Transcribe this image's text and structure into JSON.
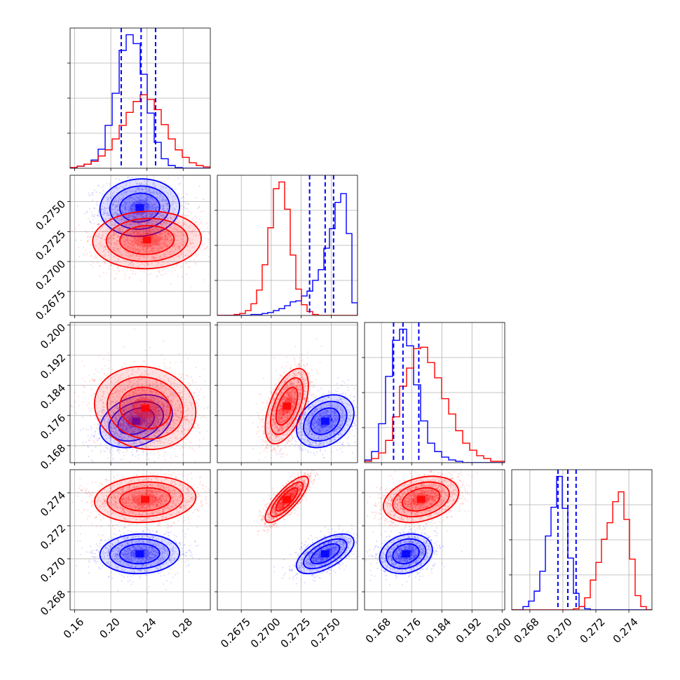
{
  "chart_data": {
    "type": "corner",
    "grid": true,
    "series": [
      {
        "color": "#0000ff"
      },
      {
        "color": "#ff0000"
      }
    ],
    "params": [
      {
        "range": [
          0.155,
          0.31
        ],
        "ticks": [
          0.16,
          0.2,
          0.24,
          0.28
        ],
        "tick_labels": [
          "0.16",
          "0.20",
          "0.24",
          "0.28"
        ]
      },
      {
        "range": [
          0.2655,
          0.2772
        ],
        "ticks": [
          0.2675,
          0.27,
          0.2725,
          0.275
        ],
        "tick_labels": [
          "0.2675",
          "0.2700",
          "0.2725",
          "0.2750"
        ]
      },
      {
        "range": [
          0.1635,
          0.2007
        ],
        "ticks": [
          0.168,
          0.176,
          0.184,
          0.192,
          0.2
        ],
        "tick_labels": [
          "0.168",
          "0.176",
          "0.184",
          "0.192",
          "0.200"
        ]
      },
      {
        "range": [
          0.2669,
          0.2754
        ],
        "ticks": [
          0.268,
          0.27,
          0.272,
          0.274
        ],
        "tick_labels": [
          "0.268",
          "0.270",
          "0.272",
          "0.274"
        ]
      }
    ],
    "histograms": [
      {
        "bins": [
          0.155,
          0.31,
          20
        ],
        "series": [
          [
            1,
            3,
            6,
            12,
            28,
            63,
            110,
            173,
            196,
            183,
            138,
            81,
            38,
            14,
            4,
            1,
            0,
            0,
            0,
            0
          ],
          [
            1,
            3,
            6,
            10,
            18,
            27,
            43,
            63,
            82,
            98,
            108,
            101,
            86,
            64,
            43,
            27,
            16,
            8,
            4,
            2
          ]
        ],
        "quantile_lines": [
          0.2115,
          0.2335,
          0.2495
        ]
      },
      {
        "bins": [
          0.2655,
          0.2772,
          25
        ],
        "series": [
          [
            0,
            0,
            0,
            0,
            0,
            0,
            1,
            1,
            2,
            3,
            5,
            7,
            10,
            14,
            15,
            20,
            25,
            36,
            47,
            69,
            89,
            116,
            125,
            84,
            13
          ],
          [
            0,
            0,
            0,
            1,
            2,
            5,
            12,
            26,
            52,
            90,
            130,
            137,
            109,
            62,
            27,
            11,
            4,
            1,
            0,
            0,
            0,
            0,
            0,
            0,
            0
          ]
        ],
        "quantile_lines": [
          0.2732,
          0.2745,
          0.2752
        ]
      },
      {
        "bins": [
          0.1635,
          0.2007,
          20
        ],
        "series": [
          [
            2,
            8,
            28,
            62,
            88,
            96,
            84,
            56,
            30,
            14,
            8,
            4,
            2,
            1,
            0,
            0,
            0,
            0,
            0,
            0
          ],
          [
            1,
            3,
            7,
            16,
            33,
            55,
            68,
            82,
            83,
            72,
            61,
            46,
            35,
            23,
            14,
            9,
            5,
            3,
            1,
            1
          ]
        ],
        "quantile_lines": [
          0.1712,
          0.1737,
          0.1779
        ]
      },
      {
        "bins": [
          0.2669,
          0.2754,
          25
        ],
        "series": [
          [
            0,
            0,
            3,
            8,
            17,
            35,
            67,
            93,
            121,
            92,
            47,
            15,
            3,
            1,
            0,
            0,
            0,
            0,
            0,
            0,
            0,
            0,
            0,
            0,
            0
          ],
          [
            0,
            0,
            0,
            0,
            0,
            0,
            0,
            0,
            0,
            0,
            0,
            1,
            3,
            11,
            27,
            43,
            64,
            79,
            98,
            107,
            82,
            46,
            13,
            3,
            0
          ]
        ],
        "quantile_lines": [
          0.2697,
          0.2703,
          0.2708
        ]
      }
    ],
    "scatter_panels": [
      {
        "x_param": 0,
        "y_param": 1,
        "blue": {
          "mean": [
            0.232,
            0.2745
          ],
          "sd": [
            0.022,
            0.0012
          ],
          "rho": 0.05,
          "points": 1300
        },
        "red": {
          "mean": [
            0.24,
            0.2718
          ],
          "sd": [
            0.03,
            0.0012
          ],
          "rho": 0.05,
          "points": 1800
        }
      },
      {
        "x_param": 0,
        "y_param": 2,
        "blue": {
          "mean": [
            0.228,
            0.1745
          ],
          "sd": [
            0.02,
            0.0035
          ],
          "rho": 0.3,
          "points": 1400
        },
        "red": {
          "mean": [
            0.238,
            0.178
          ],
          "sd": [
            0.028,
            0.0055
          ],
          "rho": -0.1,
          "points": 1800
        }
      },
      {
        "x_param": 1,
        "y_param": 2,
        "blue": {
          "mean": [
            0.2745,
            0.1745
          ],
          "sd": [
            0.0012,
            0.0035
          ],
          "rho": 0.3,
          "points": 1400
        },
        "red": {
          "mean": [
            0.2713,
            0.1785
          ],
          "sd": [
            0.0009,
            0.005
          ],
          "rho": 0.55,
          "points": 1800
        }
      },
      {
        "x_param": 0,
        "y_param": 3,
        "blue": {
          "mean": [
            0.232,
            0.2703
          ],
          "sd": [
            0.022,
            0.0006
          ],
          "rho": 0.05,
          "points": 1400
        },
        "red": {
          "mean": [
            0.238,
            0.2736
          ],
          "sd": [
            0.028,
            0.0007
          ],
          "rho": 0.1,
          "points": 1800
        }
      },
      {
        "x_param": 1,
        "y_param": 3,
        "blue": {
          "mean": [
            0.2745,
            0.2703
          ],
          "sd": [
            0.0012,
            0.0006
          ],
          "rho": 0.6,
          "points": 1400
        },
        "red": {
          "mean": [
            0.2713,
            0.2736
          ],
          "sd": [
            0.0009,
            0.0007
          ],
          "rho": 0.8,
          "points": 1800
        }
      },
      {
        "x_param": 2,
        "y_param": 3,
        "blue": {
          "mean": [
            0.1745,
            0.2703
          ],
          "sd": [
            0.0035,
            0.0006
          ],
          "rho": 0.2,
          "points": 1400
        },
        "red": {
          "mean": [
            0.1785,
            0.2736
          ],
          "sd": [
            0.005,
            0.0007
          ],
          "rho": 0.3,
          "points": 1800
        }
      }
    ]
  }
}
